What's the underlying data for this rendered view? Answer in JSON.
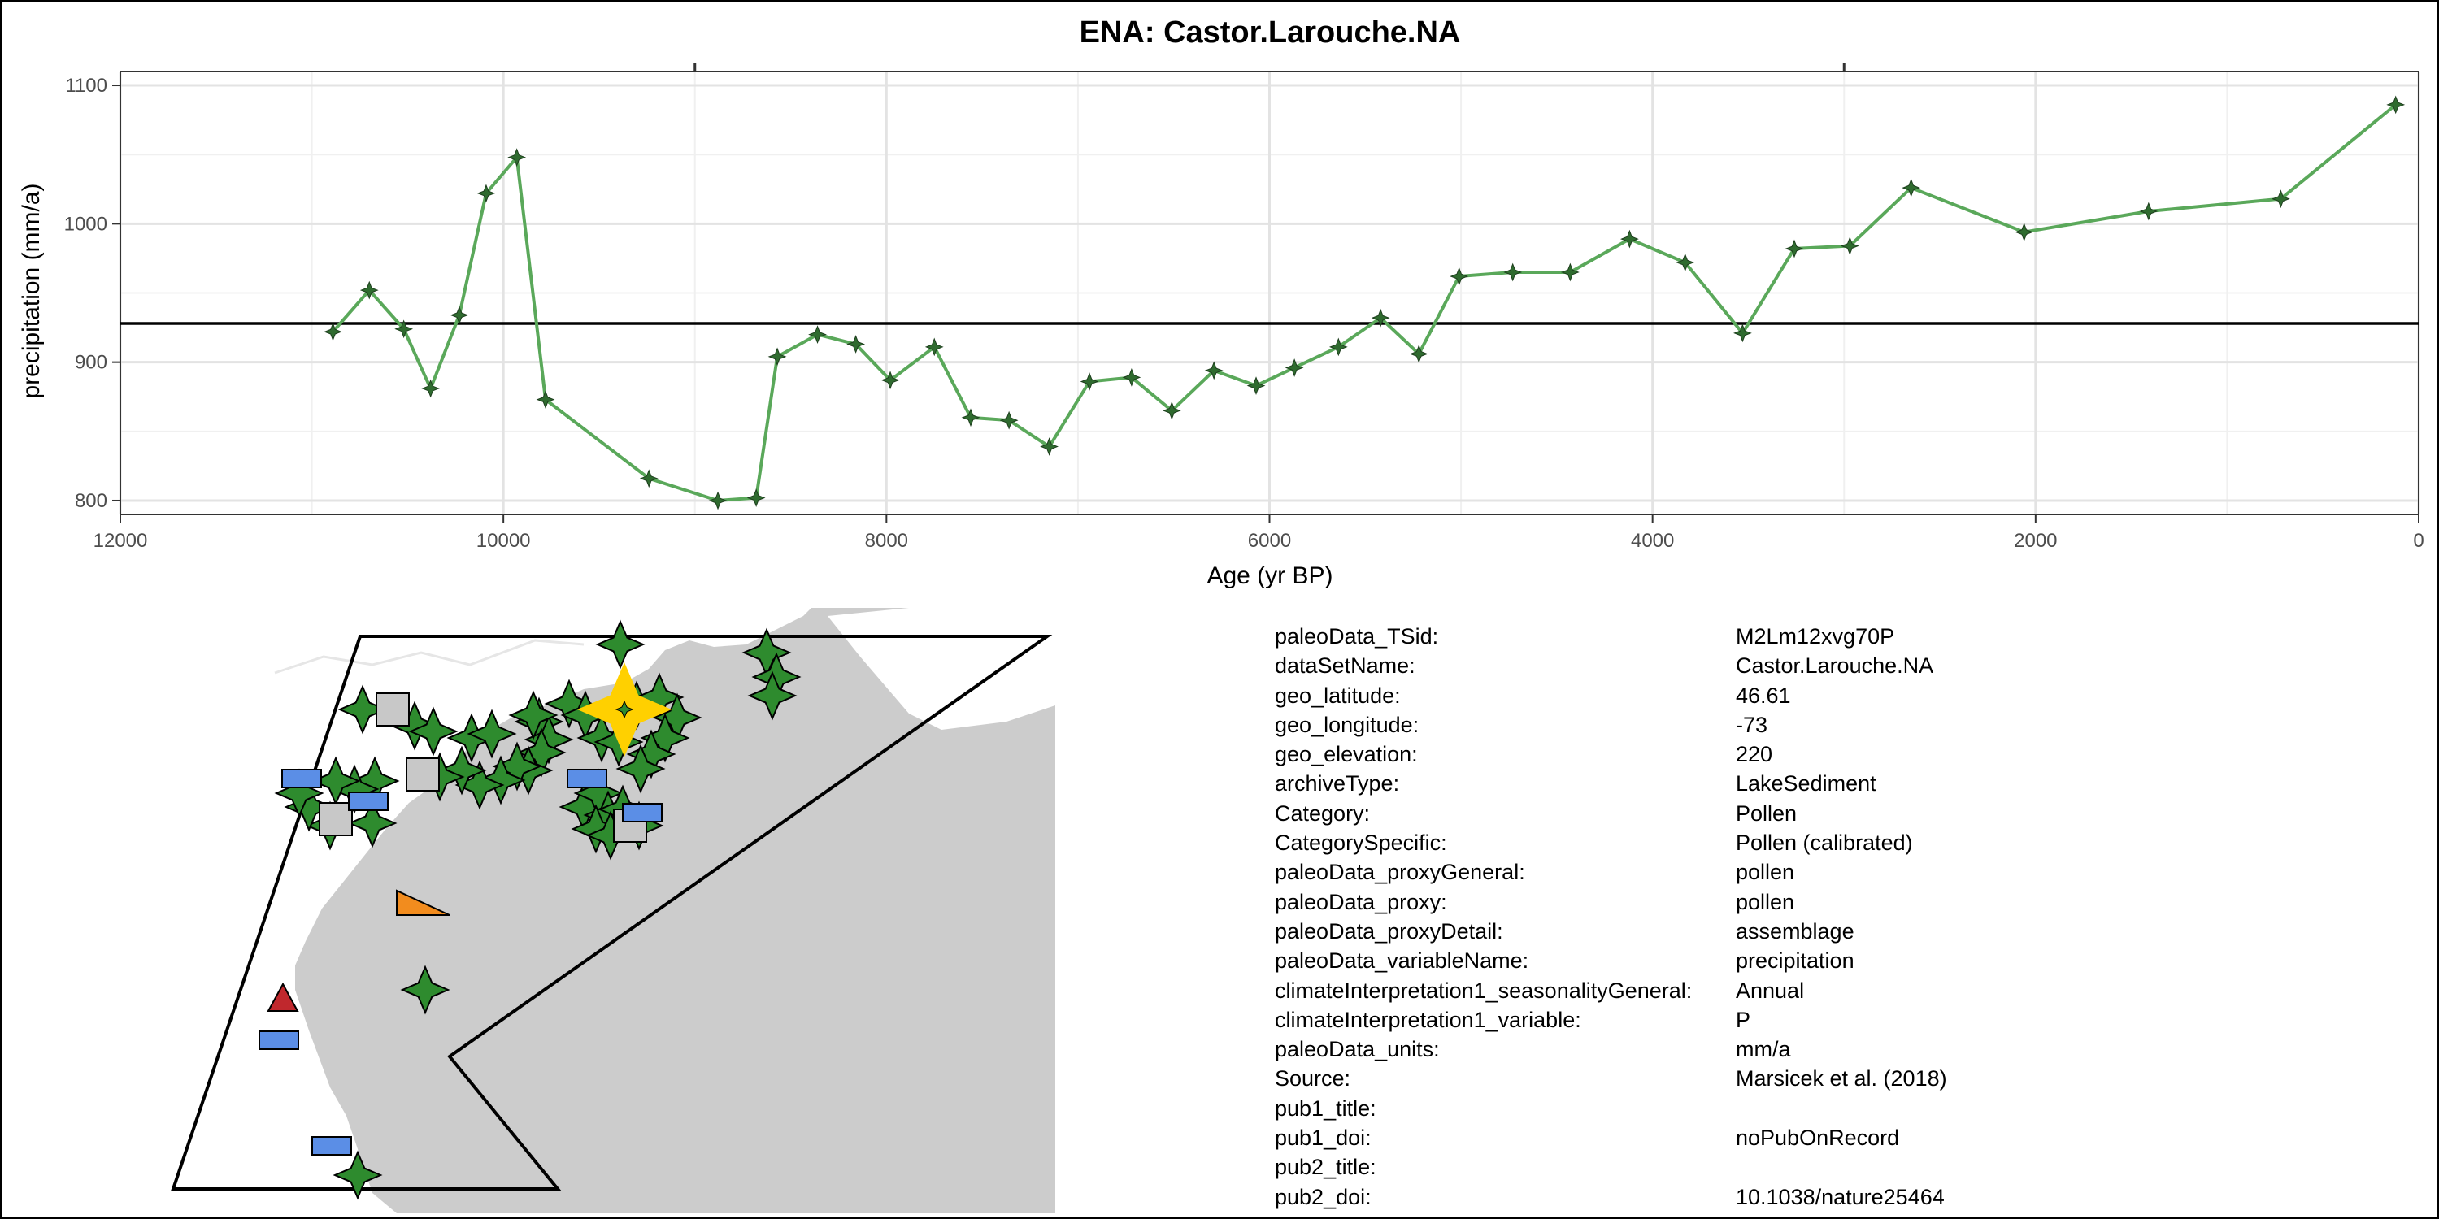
{
  "chart_data": {
    "type": "line",
    "title": "ENA: Castor.Larouche.NA",
    "xlabel": "Age (yr BP)",
    "ylabel": "precipitation (mm/a)",
    "x_reversed": true,
    "xlim": [
      12000,
      0
    ],
    "ylim": [
      790,
      1110
    ],
    "x_ticks": [
      12000,
      10000,
      8000,
      6000,
      4000,
      2000,
      0
    ],
    "x_tick_labels": [
      "12000",
      "10000",
      "8000",
      "6000",
      "4000",
      "2000",
      "0"
    ],
    "y_ticks": [
      800,
      900,
      1000,
      1100
    ],
    "y_tick_labels": [
      "800",
      "900",
      "1000",
      "1100"
    ],
    "grid": true,
    "mean_line": 928,
    "line_color": "#5aa85a",
    "marker_color": "#2f6b2f",
    "series": [
      {
        "x": [
          10890,
          10700,
          10520,
          10380,
          10230,
          10090,
          9930,
          9780,
          9240,
          8880,
          8680,
          8570,
          8360,
          8160,
          7980,
          7750,
          7560,
          7360,
          7150,
          6940,
          6720,
          6510,
          6290,
          6070,
          5870,
          5640,
          5420,
          5220,
          5010,
          4730,
          4430,
          4120,
          3830,
          3530,
          3260,
          2970,
          2650,
          2060,
          1410,
          720,
          120
        ],
        "y": [
          922,
          952,
          924,
          881,
          934,
          1022,
          1048,
          873,
          816,
          800,
          802,
          904,
          920,
          913,
          887,
          911,
          860,
          858,
          839,
          886,
          889,
          865,
          894,
          883,
          896,
          911,
          932,
          906,
          962,
          965,
          965,
          989,
          972,
          921,
          982,
          984,
          1026,
          994,
          1009,
          1018,
          1086
        ]
      }
    ]
  },
  "map": {
    "land_color": "#cccccc",
    "water_color": "#ffffff",
    "highlight_color": "#ffd000",
    "marker_green": "#2e8b2e",
    "marker_blue": "#5b8ee6",
    "marker_gray": "#c8c8c8",
    "marker_orange": "#f28c1e",
    "marker_red": "#c0282d"
  },
  "metadata": [
    {
      "key": "paleoData_TSid:",
      "value": "M2Lm12xvg70P"
    },
    {
      "key": "dataSetName:",
      "value": "Castor.Larouche.NA"
    },
    {
      "key": "geo_latitude:",
      "value": "46.61"
    },
    {
      "key": "geo_longitude:",
      "value": "-73"
    },
    {
      "key": "geo_elevation:",
      "value": "220"
    },
    {
      "key": "archiveType:",
      "value": "LakeSediment"
    },
    {
      "key": "Category:",
      "value": "Pollen"
    },
    {
      "key": "CategorySpecific:",
      "value": "Pollen (calibrated)"
    },
    {
      "key": "paleoData_proxyGeneral:",
      "value": "pollen"
    },
    {
      "key": "paleoData_proxy:",
      "value": "pollen"
    },
    {
      "key": "paleoData_proxyDetail:",
      "value": "assemblage"
    },
    {
      "key": "paleoData_variableName:",
      "value": "precipitation"
    },
    {
      "key": "climateInterpretation1_seasonalityGeneral:",
      "value": "Annual"
    },
    {
      "key": "climateInterpretation1_variable:",
      "value": "P"
    },
    {
      "key": "paleoData_units:",
      "value": "mm/a"
    },
    {
      "key": "Source:",
      "value": "Marsicek et al. (2018)"
    },
    {
      "key": "pub1_title:",
      "value": ""
    },
    {
      "key": "pub1_doi:",
      "value": "noPubOnRecord"
    },
    {
      "key": "pub2_title:",
      "value": ""
    },
    {
      "key": "pub2_doi:",
      "value": "10.1038/nature25464"
    }
  ]
}
